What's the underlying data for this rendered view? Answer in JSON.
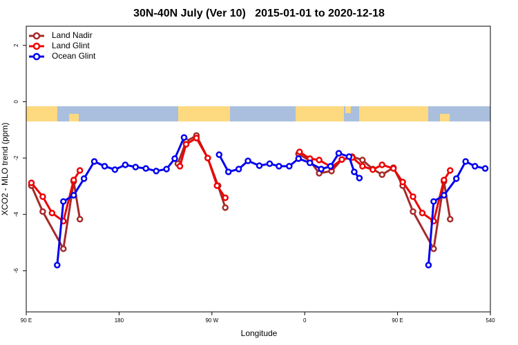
{
  "chart_data": {
    "type": "line",
    "title": "30N-40N July (Ver 10)   2015-01-01 to 2020-12-18",
    "x_label": "Longitude",
    "y_label": "XCO2 - MLO trend (ppm)",
    "xlim": [
      90,
      540
    ],
    "ylim": [
      -7.46,
      2.68
    ],
    "xticks": [
      {
        "value": 90,
        "label": "90 E"
      },
      180,
      {
        "value": 270,
        "label": "90 W"
      },
      {
        "value": 360,
        "label": "0"
      },
      {
        "value": 450,
        "label": "90 E"
      },
      540
    ],
    "yticks": [
      -6,
      -4,
      -2,
      0,
      2
    ],
    "legend": "top-left",
    "series": [
      {
        "name": "Land Nadir",
        "color": "#a52a2a",
        "x": [
          95,
          106,
          126,
          136,
          142,
          null,
          237,
          245,
          255,
          266,
          276,
          283,
          null,
          354,
          365,
          374,
          386,
          396,
          406,
          416,
          426,
          435,
          446,
          455,
          465,
          485,
          495,
          501
        ],
        "values": [
          -2.98,
          -3.9,
          -5.22,
          -2.83,
          -4.17,
          null,
          -2.2,
          -1.41,
          -1.2,
          -2.0,
          -2.98,
          -3.76,
          null,
          -1.85,
          -2.1,
          -2.54,
          -2.46,
          -2.05,
          -1.95,
          -2.07,
          -2.39,
          -2.59,
          -2.34,
          -2.98,
          -3.9,
          -5.22,
          -2.83,
          -4.17
        ]
      },
      {
        "name": "Land Glint",
        "color": "#ee0000",
        "x": [
          95,
          106,
          115,
          126,
          136,
          142,
          null,
          239,
          245,
          255,
          266,
          275,
          283,
          null,
          355,
          365,
          374,
          386,
          396,
          406,
          416,
          426,
          435,
          446,
          455,
          465,
          474,
          485,
          495,
          501
        ],
        "values": [
          -2.88,
          -3.37,
          -3.95,
          -4.24,
          -2.78,
          -2.44,
          null,
          -2.29,
          -1.51,
          -1.29,
          -2.0,
          -2.98,
          -3.41,
          null,
          -1.78,
          -2.02,
          -2.07,
          -2.32,
          -2.05,
          -1.98,
          -2.29,
          -2.41,
          -2.24,
          -2.37,
          -2.85,
          -3.37,
          -3.95,
          -4.24,
          -2.78,
          -2.44
        ]
      },
      {
        "name": "Ocean Glint",
        "color": "#0000ee",
        "x": [
          120,
          126,
          136,
          146,
          156,
          166,
          176,
          186,
          196,
          206,
          216,
          226,
          234,
          243,
          null,
          277,
          286,
          296,
          305,
          316,
          326,
          335,
          345,
          354,
          365,
          376,
          385,
          393,
          403,
          408,
          413,
          null,
          480,
          485,
          495,
          507,
          516,
          525,
          535
        ],
        "values": [
          -5.8,
          -3.54,
          -3.32,
          -2.73,
          -2.12,
          -2.29,
          -2.41,
          -2.24,
          -2.32,
          -2.37,
          -2.46,
          -2.39,
          -2.02,
          -1.27,
          null,
          -1.88,
          -2.49,
          -2.39,
          -2.1,
          -2.27,
          -2.2,
          -2.29,
          -2.29,
          -2.02,
          -2.17,
          -2.39,
          -2.29,
          -1.83,
          -1.95,
          -2.49,
          -2.71,
          null,
          -5.8,
          -3.54,
          -3.32,
          -2.73,
          -2.12,
          -2.29,
          -2.37
        ]
      }
    ]
  }
}
